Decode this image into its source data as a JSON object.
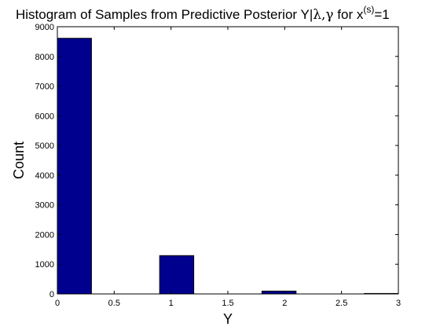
{
  "chart_data": {
    "type": "bar",
    "title_main": "Histogram of Samples from Predictive Posterior  Y|",
    "title_greek": "λ,γ",
    "title_rest": " for x",
    "title_sup": "(s)",
    "title_end": "=1",
    "xlabel": "Y",
    "ylabel": "Count",
    "xlim": [
      0,
      3
    ],
    "ylim": [
      0,
      9000
    ],
    "xticks": [
      0,
      0.5,
      1,
      1.5,
      2,
      2.5,
      3
    ],
    "xtick_labels": [
      "0",
      "0.5",
      "1",
      "1.5",
      "2",
      "2.5",
      "3"
    ],
    "yticks": [
      0,
      1000,
      2000,
      3000,
      4000,
      5000,
      6000,
      7000,
      8000,
      9000
    ],
    "ytick_labels": [
      "0",
      "1000",
      "2000",
      "3000",
      "4000",
      "5000",
      "6000",
      "7000",
      "8000",
      "9000"
    ],
    "grid": false,
    "bar_color": "#00008f",
    "bins": [
      {
        "x0": -0.3,
        "x1": 0.3,
        "value": 8610
      },
      {
        "x0": 0.9,
        "x1": 1.2,
        "value": 1290
      },
      {
        "x0": 1.8,
        "x1": 2.1,
        "value": 95
      },
      {
        "x0": 2.7,
        "x1": 3.0,
        "value": 15
      }
    ]
  }
}
